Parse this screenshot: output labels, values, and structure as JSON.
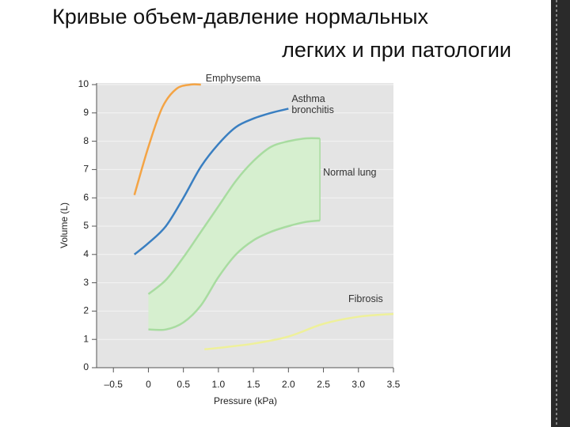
{
  "chart_data": {
    "type": "line",
    "title": [
      "Кривые объем-давление нормальных",
      "легких и  при патологии"
    ],
    "x_label": "Pressure (kPa)",
    "y_label": "Volume (L)",
    "xlim": [
      -0.74,
      3.5
    ],
    "ylim": [
      0,
      10
    ],
    "xticks": [
      {
        "value": -0.5,
        "label": "–0.5"
      },
      0,
      0.5,
      {
        "value": 1,
        "label": "1.0"
      },
      1.5,
      {
        "value": 2,
        "label": "2.0"
      },
      2.5,
      {
        "value": 3,
        "label": "3.0"
      },
      3.5
    ],
    "yticks": [
      0,
      1,
      2,
      3,
      4,
      5,
      6,
      7,
      8,
      9,
      10
    ],
    "grid": true,
    "series": [
      {
        "name": "Emphysema",
        "color": "#f4a445",
        "x": [
          -0.2,
          0,
          0.2,
          0.4,
          0.6,
          0.75
        ],
        "values": [
          6.1,
          7.8,
          9.2,
          9.85,
          10,
          10
        ]
      },
      {
        "name": "Asthma\nbronchitis",
        "color": "#3a7fc1",
        "x": [
          -0.2,
          0,
          0.25,
          0.5,
          0.75,
          1,
          1.25,
          1.5,
          1.75,
          2
        ],
        "values": [
          4,
          4.4,
          5,
          6,
          7.1,
          7.9,
          8.5,
          8.8,
          9,
          9.15
        ]
      },
      {
        "name": "Normal lung",
        "color": "#a8dca0",
        "fill": "#d6efcf",
        "x": [
          0,
          0.25,
          0.5,
          0.75,
          1,
          1.25,
          1.5,
          1.75,
          2,
          2.25,
          2.45
        ],
        "values": [
          2.6,
          3.1,
          3.9,
          4.8,
          5.7,
          6.6,
          7.3,
          7.8,
          8,
          8.1,
          8.1
        ],
        "low": [
          1.35,
          1.35,
          1.6,
          2.2,
          3.2,
          4,
          4.5,
          4.8,
          5,
          5.15,
          5.2
        ]
      },
      {
        "name": "Fibrosis",
        "color": "#eef09a",
        "x": [
          0.8,
          1,
          1.5,
          2,
          2.5,
          3,
          3.5
        ],
        "values": [
          0.65,
          0.7,
          0.85,
          1.1,
          1.55,
          1.8,
          1.9
        ]
      }
    ]
  }
}
